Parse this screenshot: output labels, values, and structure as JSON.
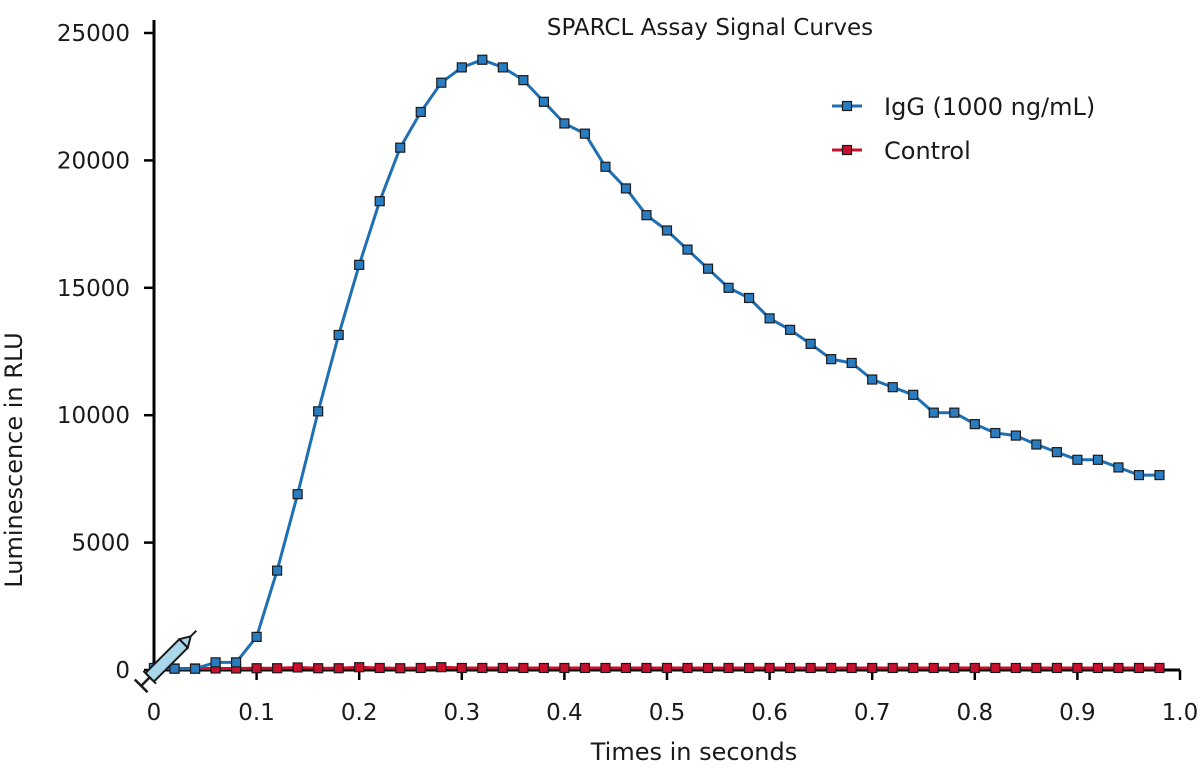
{
  "chart_data": {
    "type": "line",
    "title": "SPARCL Assay Signal Curves",
    "xlabel": "Times in seconds",
    "ylabel": "Luminescence in RLU",
    "xlim": [
      0,
      1.0
    ],
    "ylim": [
      0,
      25000
    ],
    "xticks": [
      0,
      0.1,
      0.2,
      0.3,
      0.4,
      0.5,
      0.6,
      0.7,
      0.8,
      0.9,
      1.0
    ],
    "xtick_labels": [
      "0",
      "0.1",
      "0.2",
      "0.3",
      "0.4",
      "0.5",
      "0.6",
      "0.7",
      "0.8",
      "0.9",
      "1.0"
    ],
    "yticks": [
      0,
      5000,
      10000,
      15000,
      20000,
      25000
    ],
    "ytick_labels": [
      "0",
      "5000",
      "10000",
      "15000",
      "20000",
      "25000"
    ],
    "grid": false,
    "legend_position": "top-right",
    "injection_icon": "syringe-icon",
    "x": [
      0,
      0.02,
      0.04,
      0.06,
      0.08,
      0.1,
      0.12,
      0.14,
      0.16,
      0.18,
      0.2,
      0.22,
      0.24,
      0.26,
      0.28,
      0.3,
      0.32,
      0.34,
      0.36,
      0.38,
      0.4,
      0.42,
      0.44,
      0.46,
      0.48,
      0.5,
      0.52,
      0.54,
      0.56,
      0.58,
      0.6,
      0.62,
      0.64,
      0.66,
      0.68,
      0.7,
      0.72,
      0.74,
      0.76,
      0.78,
      0.8,
      0.82,
      0.84,
      0.86,
      0.88,
      0.9,
      0.92,
      0.94,
      0.96,
      0.98
    ],
    "series": [
      {
        "name": "IgG (1000 ng/mL)",
        "color": "#1f6fb3",
        "marker_color": "#2a7cc0",
        "values": [
          80,
          50,
          50,
          300,
          300,
          1300,
          3900,
          6900,
          10150,
          13150,
          15900,
          18400,
          20500,
          21900,
          23050,
          23650,
          23950,
          23650,
          23150,
          22300,
          21450,
          21050,
          19750,
          18900,
          17850,
          17250,
          16500,
          15750,
          15000,
          14600,
          13800,
          13350,
          12800,
          12200,
          12050,
          11400,
          11100,
          10800,
          10100,
          10100,
          9650,
          9300,
          9200,
          8850,
          8550,
          8250,
          8250,
          7950,
          7650,
          7650
        ]
      },
      {
        "name": "Control",
        "color": "#c8102e",
        "marker_color": "#c8102e",
        "values": [
          60,
          60,
          60,
          60,
          60,
          70,
          70,
          100,
          70,
          70,
          110,
          80,
          70,
          80,
          110,
          80,
          80,
          80,
          80,
          80,
          80,
          80,
          80,
          80,
          80,
          80,
          80,
          80,
          80,
          80,
          80,
          80,
          80,
          80,
          80,
          80,
          80,
          80,
          80,
          80,
          80,
          80,
          80,
          80,
          80,
          80,
          80,
          80,
          80,
          80
        ]
      }
    ]
  }
}
